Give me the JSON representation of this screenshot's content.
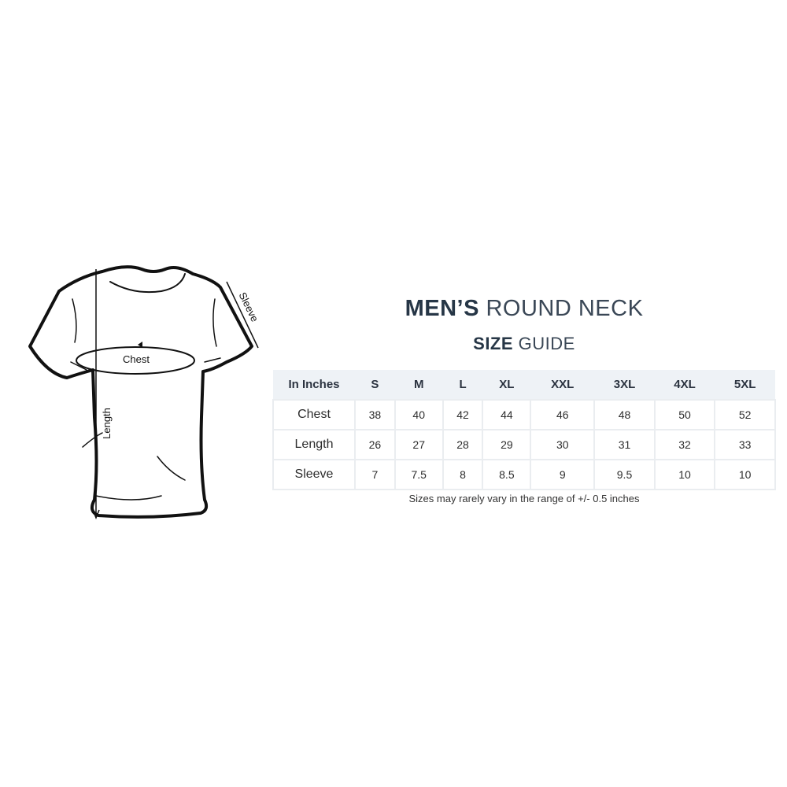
{
  "title": {
    "bold": "MEN’S",
    "rest": "ROUND NECK"
  },
  "subtitle": {
    "bold": "SIZE",
    "rest": "GUIDE"
  },
  "diagram": {
    "chest_label": "Chest",
    "length_label": "Length",
    "sleeve_label": "Sleeve"
  },
  "table": {
    "headers": [
      "In Inches",
      "S",
      "M",
      "L",
      "XL",
      "XXL",
      "3XL",
      "4XL",
      "5XL"
    ],
    "rows": [
      {
        "label": "Chest",
        "values": [
          "38",
          "40",
          "42",
          "44",
          "46",
          "48",
          "50",
          "52"
        ]
      },
      {
        "label": "Length",
        "values": [
          "26",
          "27",
          "28",
          "29",
          "30",
          "31",
          "32",
          "33"
        ]
      },
      {
        "label": "Sleeve",
        "values": [
          "7",
          "7.5",
          "8",
          "8.5",
          "9",
          "9.5",
          "10",
          "10"
        ]
      }
    ]
  },
  "note": "Sizes may rarely vary in the range of +/- 0.5 inches"
}
